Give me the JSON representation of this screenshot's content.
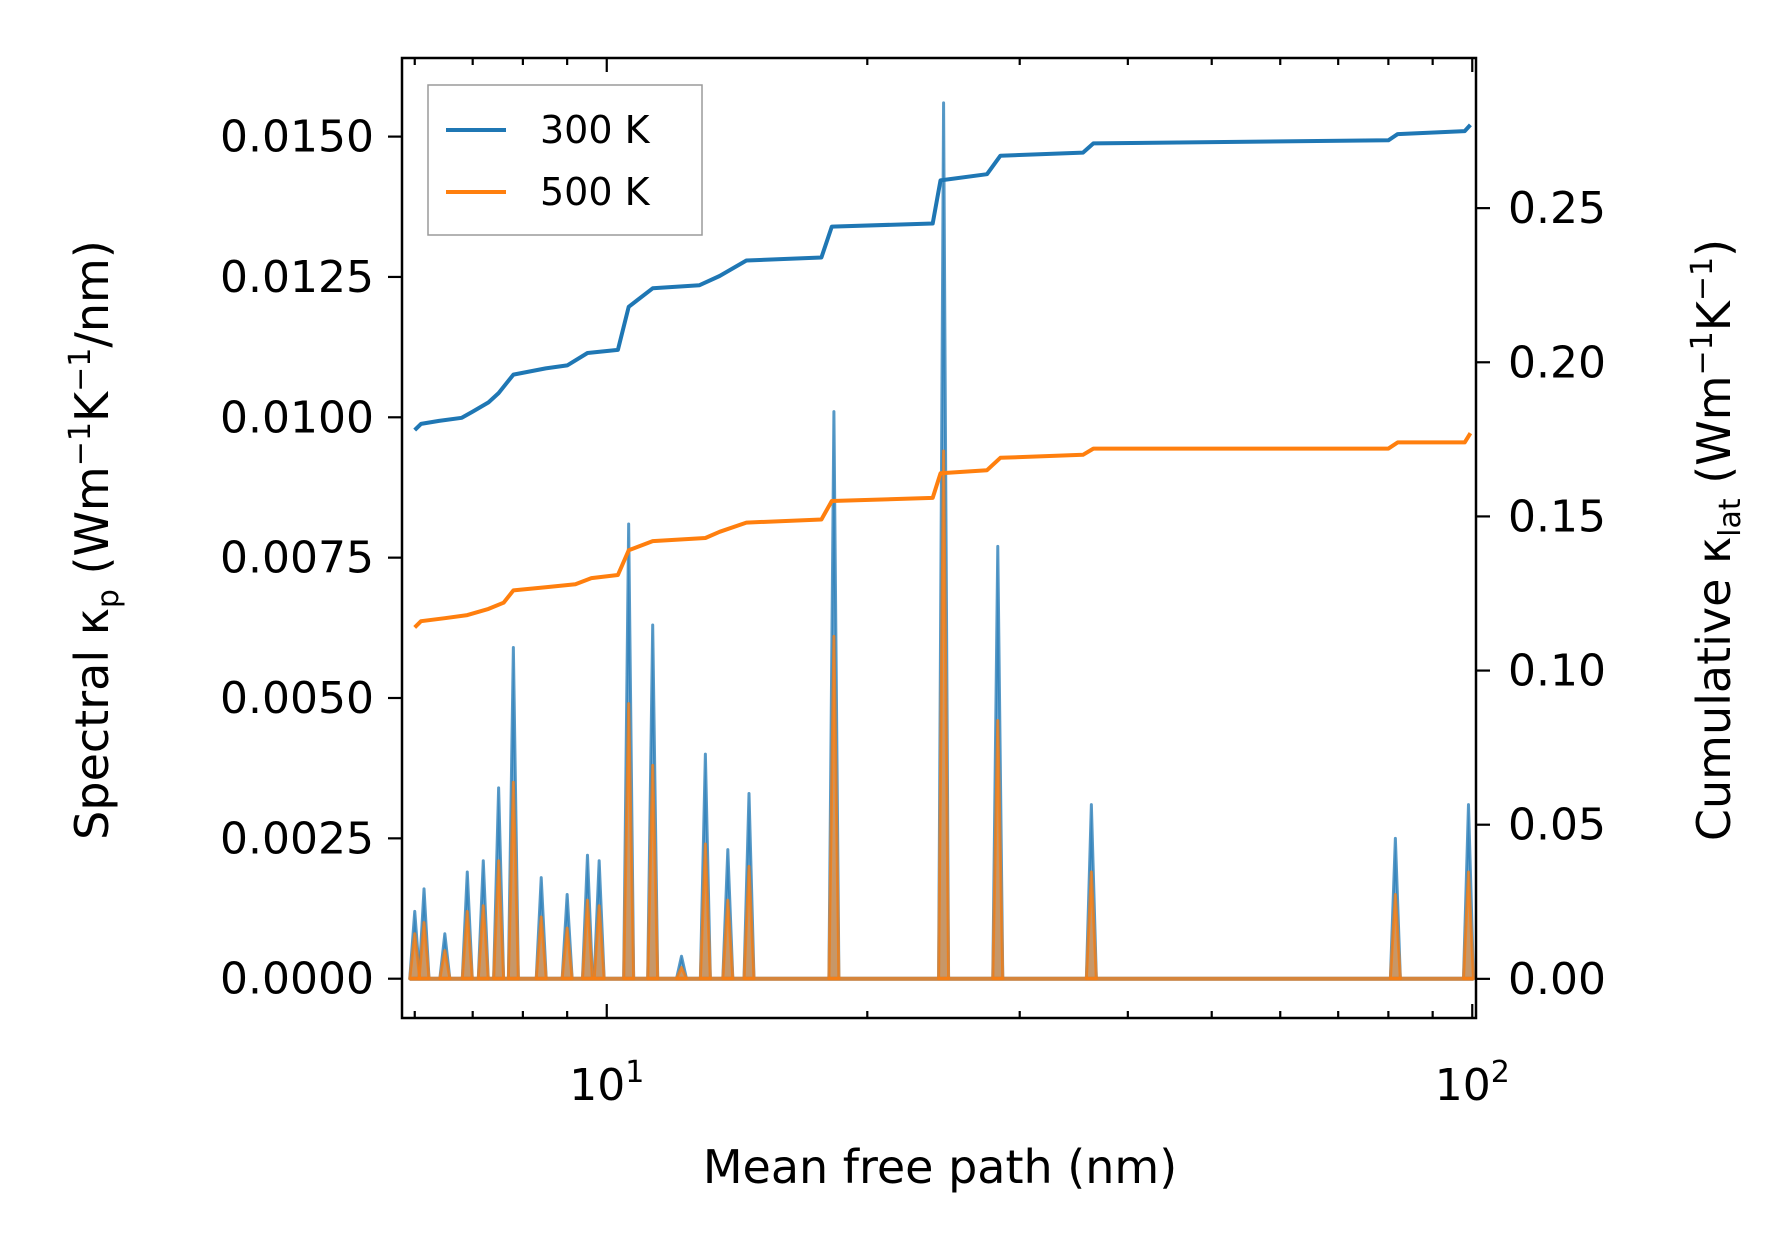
{
  "chart_data": {
    "type": "line",
    "x_scale": "log",
    "xlabel": "Mean free path (nm)",
    "ylabel_left": {
      "main": "Spectral κ",
      "sub": "p",
      "unit_pre": " (Wm",
      "sup1": "−1",
      "unit_mid": "K",
      "sup2": "−1",
      "unit_post": "/nm)"
    },
    "ylabel_right": {
      "main": "Cumulative κ",
      "sub": "lat",
      "unit_pre": " (Wm",
      "sup1": "−1",
      "unit_mid": "K",
      "sup2": "−1",
      "unit_post": ")"
    },
    "xlim": [
      5.8,
      101
    ],
    "ylim_left": [
      -0.0007,
      0.0164
    ],
    "ylim_right": [
      -0.0127,
      0.2987
    ],
    "x_ticks": [
      {
        "value": 10,
        "base": "10",
        "exp": "1"
      },
      {
        "value": 100,
        "base": "10",
        "exp": "2"
      }
    ],
    "y_ticks_left": [
      "0.0000",
      "0.0025",
      "0.0050",
      "0.0075",
      "0.0100",
      "0.0125",
      "0.0150"
    ],
    "y_ticks_right": [
      "0.00",
      "0.05",
      "0.10",
      "0.15",
      "0.20",
      "0.25"
    ],
    "legend": {
      "position": "upper left",
      "entries": [
        "300 K",
        "500 K"
      ]
    },
    "series": [
      {
        "name": "300 K",
        "color": "#1f77b4",
        "spectral_peaks": [
          [
            6.0,
            0.0012
          ],
          [
            6.15,
            0.0016
          ],
          [
            6.5,
            0.0008
          ],
          [
            6.9,
            0.0019
          ],
          [
            7.2,
            0.0021
          ],
          [
            7.5,
            0.0034
          ],
          [
            7.8,
            0.0059
          ],
          [
            8.4,
            0.0018
          ],
          [
            9.0,
            0.0015
          ],
          [
            9.5,
            0.0022
          ],
          [
            9.8,
            0.0021
          ],
          [
            10.6,
            0.0081
          ],
          [
            11.3,
            0.0063
          ],
          [
            12.2,
            0.0004
          ],
          [
            13.0,
            0.004
          ],
          [
            13.8,
            0.0023
          ],
          [
            14.6,
            0.0033
          ],
          [
            18.3,
            0.0101
          ],
          [
            24.5,
            0.0156
          ],
          [
            28.3,
            0.0077
          ],
          [
            36.3,
            0.0031
          ],
          [
            81.5,
            0.0025
          ],
          [
            99.0,
            0.0031
          ]
        ],
        "cumulative": [
          [
            6.0,
            0.178
          ],
          [
            6.1,
            0.18
          ],
          [
            6.4,
            0.181
          ],
          [
            6.8,
            0.182
          ],
          [
            7.0,
            0.184
          ],
          [
            7.3,
            0.187
          ],
          [
            7.5,
            0.19
          ],
          [
            7.8,
            0.196
          ],
          [
            8.5,
            0.198
          ],
          [
            9.0,
            0.199
          ],
          [
            9.5,
            0.203
          ],
          [
            10.3,
            0.204
          ],
          [
            10.6,
            0.218
          ],
          [
            11.3,
            0.224
          ],
          [
            12.8,
            0.225
          ],
          [
            13.5,
            0.228
          ],
          [
            14.5,
            0.233
          ],
          [
            17.7,
            0.234
          ],
          [
            18.2,
            0.244
          ],
          [
            23.8,
            0.245
          ],
          [
            24.3,
            0.259
          ],
          [
            27.5,
            0.261
          ],
          [
            28.5,
            0.267
          ],
          [
            35.5,
            0.268
          ],
          [
            36.5,
            0.271
          ],
          [
            80.0,
            0.272
          ],
          [
            82.0,
            0.274
          ],
          [
            98.0,
            0.275
          ],
          [
            99.5,
            0.277
          ]
        ]
      },
      {
        "name": "500 K",
        "color": "#ff7f0e",
        "spectral_peaks": [
          [
            6.0,
            0.0008
          ],
          [
            6.15,
            0.001
          ],
          [
            6.5,
            0.0005
          ],
          [
            6.9,
            0.0012
          ],
          [
            7.2,
            0.0013
          ],
          [
            7.5,
            0.0021
          ],
          [
            7.8,
            0.0035
          ],
          [
            8.4,
            0.0011
          ],
          [
            9.0,
            0.0009
          ],
          [
            9.5,
            0.0014
          ],
          [
            9.8,
            0.0013
          ],
          [
            10.6,
            0.0049
          ],
          [
            11.3,
            0.0038
          ],
          [
            12.2,
            0.0002
          ],
          [
            13.0,
            0.0024
          ],
          [
            13.8,
            0.0014
          ],
          [
            14.6,
            0.002
          ],
          [
            18.3,
            0.0061
          ],
          [
            24.5,
            0.0094
          ],
          [
            28.3,
            0.0046
          ],
          [
            36.3,
            0.0019
          ],
          [
            81.5,
            0.0015
          ],
          [
            99.0,
            0.0019
          ]
        ],
        "cumulative": [
          [
            6.0,
            0.114
          ],
          [
            6.1,
            0.116
          ],
          [
            6.5,
            0.117
          ],
          [
            6.9,
            0.118
          ],
          [
            7.3,
            0.12
          ],
          [
            7.6,
            0.122
          ],
          [
            7.8,
            0.126
          ],
          [
            8.5,
            0.127
          ],
          [
            9.2,
            0.128
          ],
          [
            9.6,
            0.13
          ],
          [
            10.3,
            0.131
          ],
          [
            10.6,
            0.139
          ],
          [
            11.3,
            0.142
          ],
          [
            13.0,
            0.143
          ],
          [
            13.5,
            0.145
          ],
          [
            14.5,
            0.148
          ],
          [
            17.7,
            0.149
          ],
          [
            18.2,
            0.155
          ],
          [
            23.8,
            0.156
          ],
          [
            24.3,
            0.164
          ],
          [
            27.5,
            0.165
          ],
          [
            28.5,
            0.169
          ],
          [
            35.5,
            0.17
          ],
          [
            36.5,
            0.172
          ],
          [
            80.0,
            0.172
          ],
          [
            82.0,
            0.174
          ],
          [
            98.0,
            0.174
          ],
          [
            99.5,
            0.177
          ]
        ]
      }
    ]
  }
}
